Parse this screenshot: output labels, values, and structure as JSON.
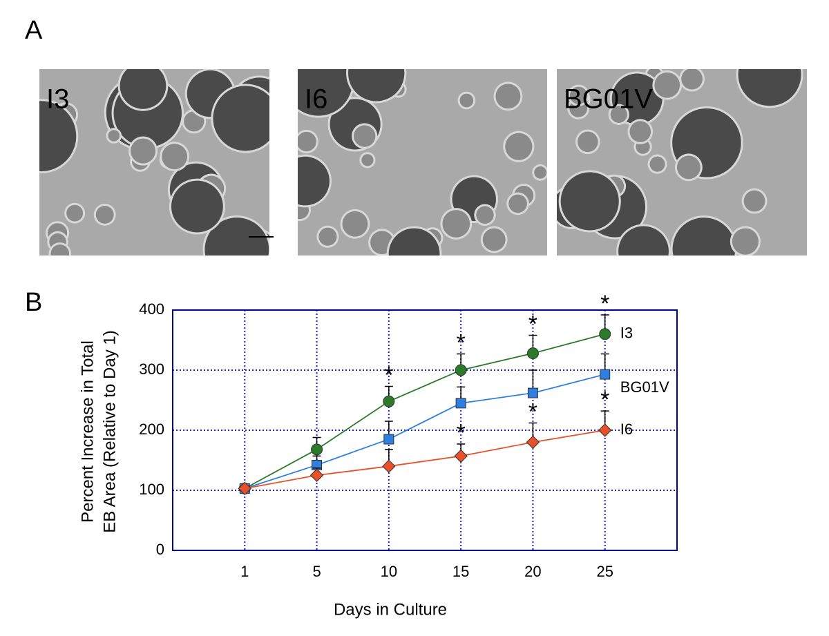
{
  "panel_a_label": "A",
  "panel_b_label": "B",
  "micrographs": [
    "I3",
    "I6",
    "BG01V"
  ],
  "chart_data": {
    "type": "line",
    "ylabel": [
      "Percent Increase in Total",
      "EB Area (Relative to Day 1)"
    ],
    "xlabel": "Days in Culture",
    "categories": [
      "1",
      "5",
      "10",
      "15",
      "20",
      "25"
    ],
    "ylim": [
      0,
      400
    ],
    "yticks": [
      0,
      100,
      200,
      300,
      400
    ],
    "grid": true,
    "series": [
      {
        "name": "I3",
        "color": "#2a7a2a",
        "values": [
          103,
          168,
          248,
          300,
          328,
          360
        ],
        "errors": [
          0,
          20,
          25,
          27,
          30,
          32
        ],
        "significance": [
          null,
          null,
          "*",
          "*",
          "*",
          "*"
        ]
      },
      {
        "name": "BG01V",
        "color": "#2f7fe0",
        "values": [
          103,
          142,
          185,
          245,
          262,
          293
        ],
        "errors": [
          0,
          15,
          30,
          27,
          38,
          34
        ],
        "significance": [
          null,
          null,
          null,
          null,
          null,
          null
        ]
      },
      {
        "name": "I6",
        "color": "#e8502a",
        "values": [
          103,
          125,
          140,
          157,
          180,
          200
        ],
        "errors": [
          0,
          12,
          28,
          20,
          32,
          32
        ],
        "significance": [
          null,
          null,
          null,
          "*",
          "*",
          "*"
        ]
      }
    ]
  }
}
